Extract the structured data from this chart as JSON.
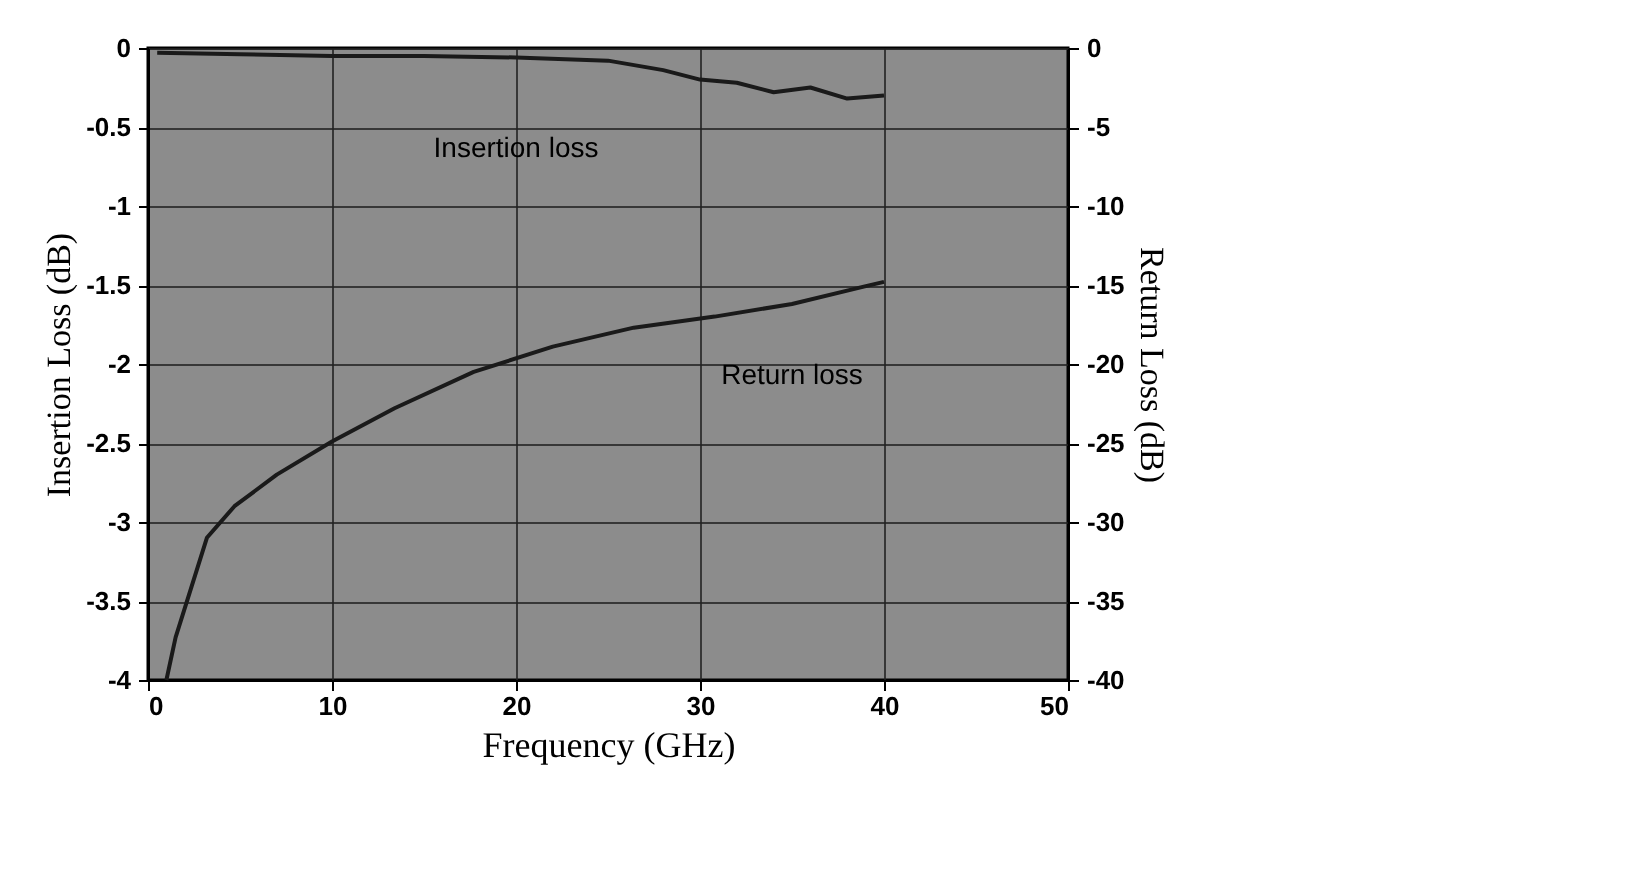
{
  "chart_data": {
    "type": "line",
    "xlabel": "Frequency (GHz)",
    "ylabel": "Insertion Loss (dB)",
    "y2label": "Return Loss (dB)",
    "xlim": [
      0,
      50
    ],
    "xticks": [
      0,
      10,
      20,
      30,
      40,
      50
    ],
    "ylim": [
      -4,
      0
    ],
    "yticks": [
      -4,
      -3.5,
      -3,
      -2.5,
      -2,
      -1.5,
      -1,
      -0.5,
      0
    ],
    "y2lim": [
      -40,
      0
    ],
    "y2ticks": [
      -40,
      -35,
      -30,
      -25,
      -20,
      -15,
      -10,
      -5,
      0
    ],
    "grid": true,
    "series": [
      {
        "name": "Insertion loss",
        "color": "#1a1a1a",
        "x": [
          0.5,
          5,
          10,
          15,
          20,
          25,
          28,
          30,
          32,
          34,
          36,
          38,
          40
        ],
        "values": [
          -0.03,
          -0.04,
          -0.05,
          -0.05,
          -0.06,
          -0.08,
          -0.14,
          -0.2,
          -0.22,
          -0.28,
          -0.25,
          -0.32,
          -0.3
        ]
      },
      {
        "name": "Return loss",
        "color": "#1a1a1a",
        "axis": "y2",
        "x": [
          1,
          1.5,
          3.2,
          4.7,
          7,
          10,
          13.4,
          17.7,
          22,
          26.4,
          30.8,
          35,
          38.9,
          40
        ],
        "values": [
          -40,
          -37.3,
          -31,
          -29,
          -27,
          -24.9,
          -22.8,
          -20.5,
          -18.9,
          -17.7,
          -17,
          -16.2,
          -15.1,
          -14.8
        ]
      }
    ]
  }
}
